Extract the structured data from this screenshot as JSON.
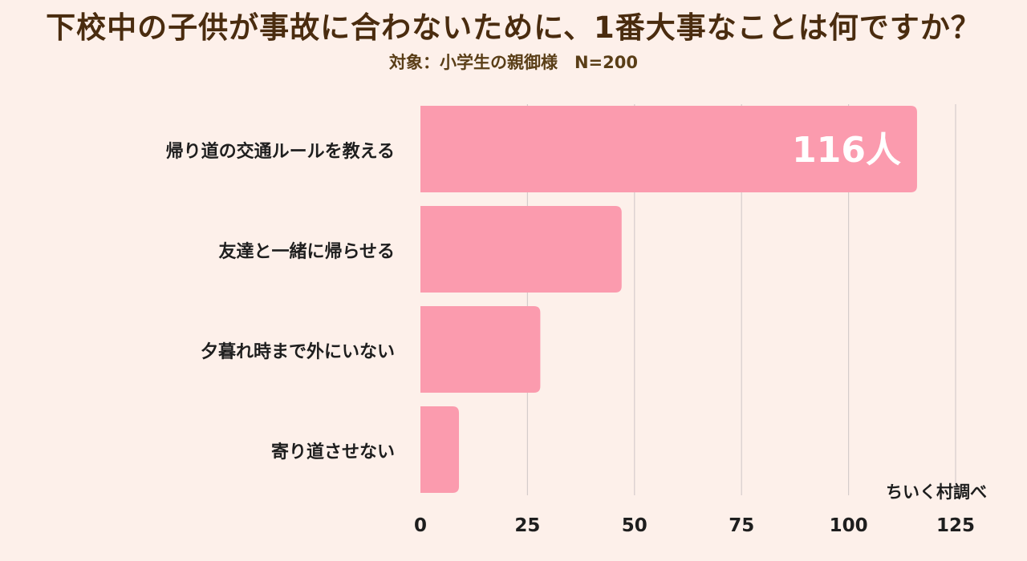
{
  "title": "下校中の子供が事故に合わないために、1番大事なことは何ですか？",
  "subtitle": "対象：小学生の親御様　N=200",
  "credit": "ちいく村調べ",
  "colors": {
    "bar": "#fb9bae",
    "grid": "#d5cccb",
    "background": "#fdf0ea",
    "value_label": "#ffffff"
  },
  "chart_data": {
    "type": "bar",
    "orientation": "horizontal",
    "categories": [
      "帰り道の交通ルールを教える",
      "友達と一緒に帰らせる",
      "夕暮れ時まで外にいない",
      "寄り道させない"
    ],
    "values": [
      116,
      47,
      28,
      9
    ],
    "value_labels": [
      "116人",
      "",
      "",
      ""
    ],
    "xlim": [
      0,
      125
    ],
    "xticks": [
      0,
      25,
      50,
      75,
      100,
      125
    ],
    "grid": true,
    "title": "下校中の子供が事故に合わないために、1番大事なことは何ですか？",
    "xlabel": "",
    "ylabel": ""
  }
}
